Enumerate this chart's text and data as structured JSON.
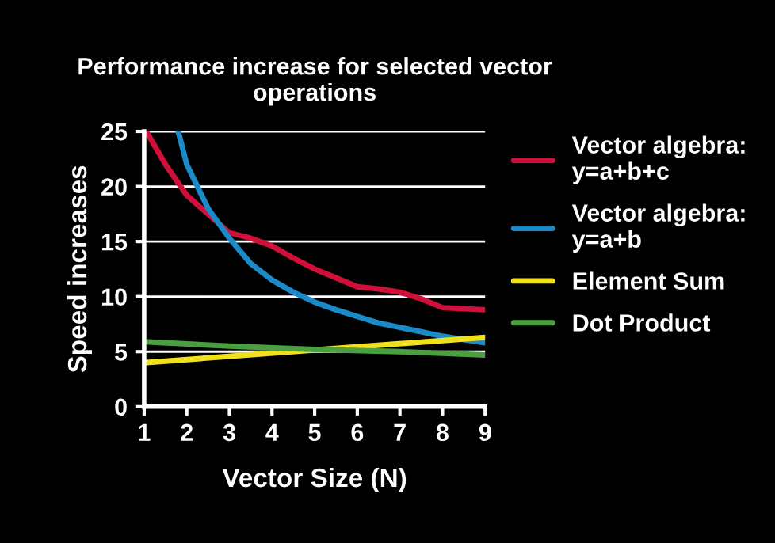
{
  "chart_data": {
    "type": "line",
    "title": "Performance increase for selected vector\noperations",
    "xlabel": "Vector Size (N)",
    "ylabel": "Speed increases",
    "series": [
      {
        "name": "Vector algebra:\ny=a+b+c",
        "color": "#d0103a",
        "x": [
          1.05,
          1.5,
          2,
          2.5,
          3,
          3.5,
          4,
          4.5,
          5,
          5.5,
          6,
          6.5,
          7,
          7.5,
          8,
          8.5,
          9
        ],
        "values": [
          25,
          22,
          19.2,
          17.5,
          15.8,
          15.3,
          14.6,
          13.5,
          12.5,
          11.7,
          10.9,
          10.7,
          10.4,
          9.8,
          9,
          8.9,
          8.8
        ]
      },
      {
        "name": "Vector algebra:\ny=a+b",
        "color": "#1a8ac8",
        "x": [
          1.8,
          2,
          2.5,
          3,
          3.5,
          4,
          4.5,
          5,
          5.5,
          6,
          6.5,
          7,
          7.5,
          8,
          8.5,
          9
        ],
        "values": [
          25,
          22,
          18,
          15.3,
          13,
          11.5,
          10.4,
          9.5,
          8.8,
          8.2,
          7.6,
          7.2,
          6.8,
          6.4,
          6.1,
          5.8
        ]
      },
      {
        "name": "Element Sum",
        "color": "#f0e020",
        "x": [
          1,
          9
        ],
        "values": [
          4,
          6.3
        ]
      },
      {
        "name": "Dot Product",
        "color": "#4aa040",
        "x": [
          1,
          3,
          5,
          7,
          9
        ],
        "values": [
          5.9,
          5.5,
          5.2,
          5.0,
          4.7
        ]
      }
    ],
    "xlim": [
      1,
      9
    ],
    "xticks": [
      1,
      2,
      3,
      4,
      5,
      6,
      7,
      8,
      9
    ],
    "ylim": [
      0,
      25
    ],
    "yticks": [
      0,
      5,
      10,
      15,
      20,
      25
    ],
    "grid": "y",
    "legend": "right"
  }
}
